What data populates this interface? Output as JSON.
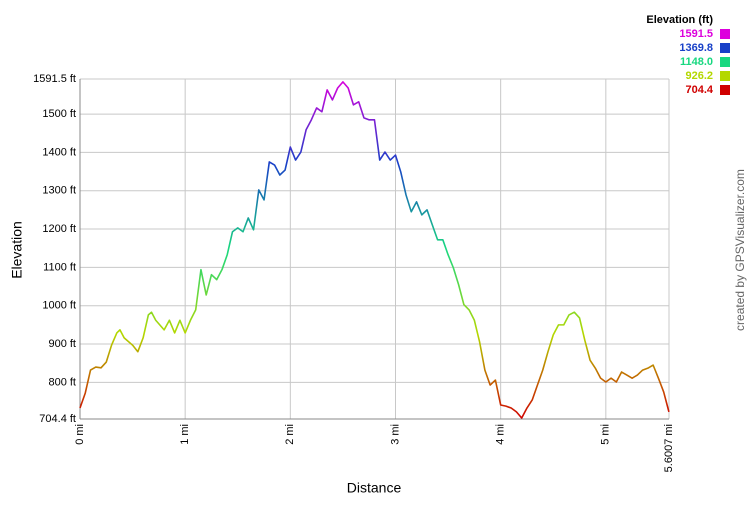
{
  "chart_data": {
    "type": "line",
    "x_label": "Distance",
    "y_label": "Elevation",
    "credit": "created by GPSVisualizer.com",
    "legend": {
      "title": "Elevation (ft)",
      "items": [
        {
          "value": 1591.5,
          "label": "1591.5",
          "color": "#dd00dd"
        },
        {
          "value": 1369.8,
          "label": "1369.8",
          "color": "#1840c8"
        },
        {
          "value": 1148,
          "label": "1148.0",
          "color": "#18d880"
        },
        {
          "value": 926.2,
          "label": "926.2",
          "color": "#b4d800"
        },
        {
          "value": 704.4,
          "label": "704.4",
          "color": "#d00000"
        }
      ]
    },
    "xlim": [
      0,
      5.6007
    ],
    "ylim": [
      704.4,
      1591.5
    ],
    "grid": true,
    "xticks": [
      {
        "value": 0,
        "label": "0 mi"
      },
      {
        "value": 1,
        "label": "1 mi"
      },
      {
        "value": 2,
        "label": "2 mi"
      },
      {
        "value": 3,
        "label": "3 mi"
      },
      {
        "value": 4,
        "label": "4 mi"
      },
      {
        "value": 5,
        "label": "5 mi"
      },
      {
        "value": 5.6007,
        "label": "5.6007 mi"
      }
    ],
    "yticks": [
      {
        "value": 704.4,
        "label": "704.4 ft"
      },
      {
        "value": 800,
        "label": "800 ft"
      },
      {
        "value": 900,
        "label": "900 ft"
      },
      {
        "value": 1000,
        "label": "1000 ft"
      },
      {
        "value": 1100,
        "label": "1100 ft"
      },
      {
        "value": 1200,
        "label": "1200 ft"
      },
      {
        "value": 1300,
        "label": "1300 ft"
      },
      {
        "value": 1400,
        "label": "1400 ft"
      },
      {
        "value": 1500,
        "label": "1500 ft"
      },
      {
        "value": 1591.5,
        "label": "1591.5 ft"
      }
    ],
    "x": [
      0,
      0.05,
      0.1,
      0.15,
      0.2,
      0.25,
      0.3,
      0.35,
      0.38,
      0.42,
      0.5,
      0.55,
      0.6,
      0.65,
      0.68,
      0.72,
      0.8,
      0.85,
      0.9,
      0.95,
      1.0,
      1.05,
      1.1,
      1.15,
      1.2,
      1.25,
      1.3,
      1.35,
      1.4,
      1.45,
      1.5,
      1.55,
      1.6,
      1.65,
      1.7,
      1.75,
      1.8,
      1.85,
      1.9,
      1.95,
      2.0,
      2.05,
      2.1,
      2.15,
      2.2,
      2.25,
      2.3,
      2.35,
      2.4,
      2.45,
      2.5,
      2.55,
      2.6,
      2.65,
      2.7,
      2.75,
      2.8,
      2.85,
      2.9,
      2.95,
      3.0,
      3.05,
      3.1,
      3.15,
      3.2,
      3.25,
      3.3,
      3.35,
      3.4,
      3.45,
      3.5,
      3.55,
      3.6,
      3.65,
      3.7,
      3.75,
      3.8,
      3.85,
      3.9,
      3.95,
      4.0,
      4.05,
      4.1,
      4.15,
      4.2,
      4.25,
      4.3,
      4.35,
      4.4,
      4.45,
      4.5,
      4.55,
      4.6,
      4.65,
      4.7,
      4.75,
      4.8,
      4.85,
      4.9,
      4.95,
      5.0,
      5.05,
      5.1,
      5.15,
      5.2,
      5.25,
      5.3,
      5.35,
      5.4,
      5.45,
      5.5,
      5.55,
      5.6
    ],
    "values": [
      733,
      772,
      832,
      840,
      838,
      853,
      897,
      929,
      937,
      916,
      897,
      880,
      916,
      976,
      983,
      962,
      937,
      962,
      929,
      962,
      929,
      962,
      989,
      1094,
      1028,
      1081,
      1068,
      1094,
      1133,
      1193,
      1203,
      1193,
      1229,
      1198,
      1302,
      1276,
      1375,
      1367,
      1341,
      1354,
      1414,
      1380,
      1401,
      1459,
      1485,
      1516,
      1506,
      1563,
      1537,
      1568,
      1584,
      1568,
      1524,
      1532,
      1490,
      1485,
      1485,
      1380,
      1401,
      1380,
      1393,
      1349,
      1289,
      1245,
      1271,
      1237,
      1250,
      1211,
      1172,
      1172,
      1133,
      1099,
      1055,
      1003,
      989,
      962,
      905,
      832,
      793,
      806,
      741,
      738,
      733,
      723,
      707,
      733,
      754,
      793,
      832,
      880,
      924,
      950,
      950,
      976,
      983,
      968,
      910,
      858,
      837,
      811,
      801,
      811,
      801,
      827,
      819,
      811,
      819,
      832,
      837,
      845,
      811,
      775,
      723
    ]
  }
}
